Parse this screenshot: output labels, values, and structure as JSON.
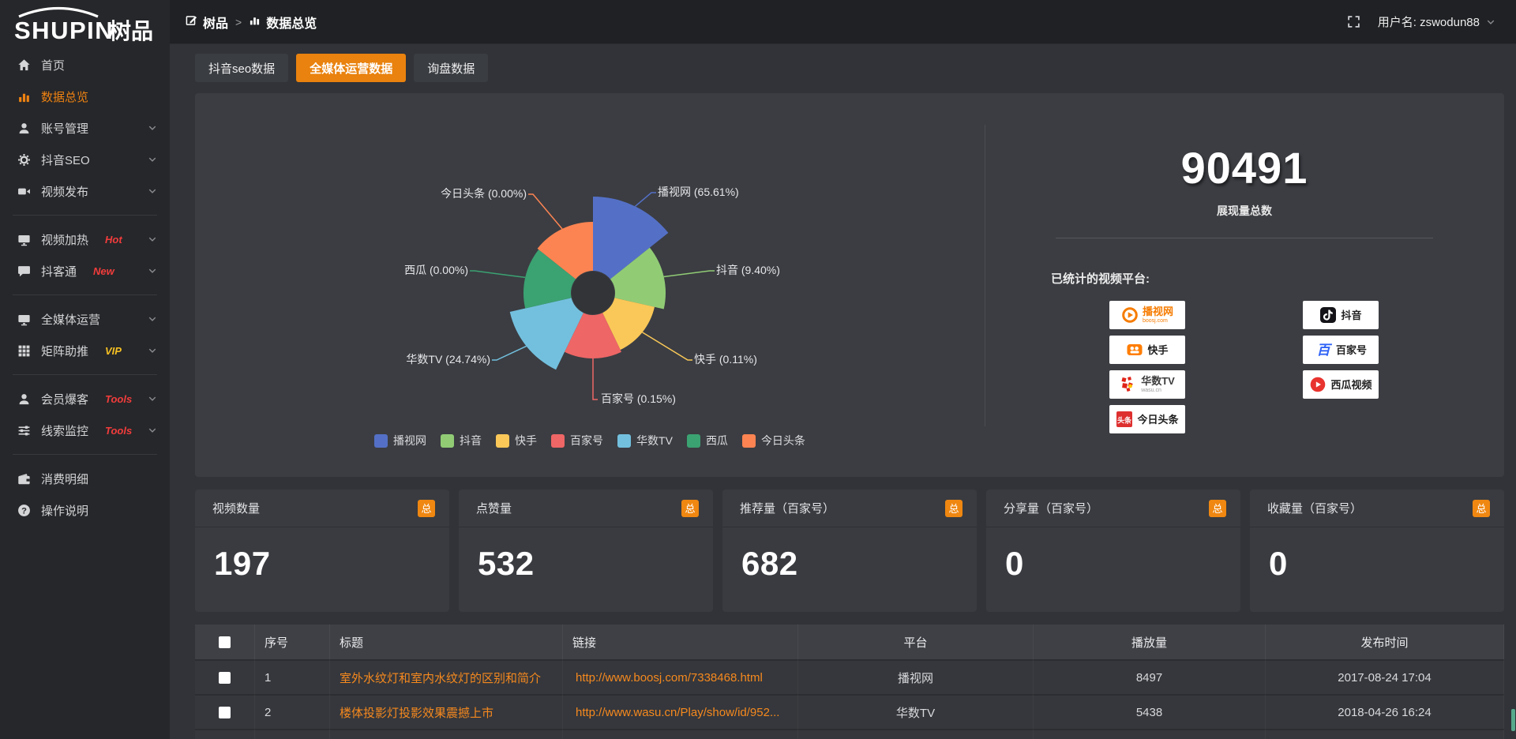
{
  "logo": {
    "text_en": "SHUPIN",
    "text_cn": "树品"
  },
  "topbar": {
    "breadcrumb_home": "树品",
    "breadcrumb_sep": ">",
    "breadcrumb_current": "数据总览",
    "user_label": "用户名: zswodun88"
  },
  "sidebar": {
    "items": [
      {
        "key": "home",
        "label": "首页",
        "icon": "home"
      },
      {
        "key": "data-overview",
        "label": "数据总览",
        "icon": "chart",
        "active": true
      },
      {
        "key": "account-management",
        "label": "账号管理",
        "icon": "user",
        "chevron": true
      },
      {
        "key": "douyin-seo",
        "label": "抖音SEO",
        "icon": "gear",
        "chevron": true
      },
      {
        "key": "video-publish",
        "label": "视频发布",
        "icon": "video",
        "chevron": true
      },
      {
        "divider": true
      },
      {
        "key": "video-heat",
        "label": "视频加热",
        "icon": "monitor",
        "badge": "Hot",
        "badge_color": "#f23c3c",
        "chevron": true
      },
      {
        "key": "douketong",
        "label": "抖客通",
        "icon": "chat",
        "badge": "New",
        "badge_color": "#f23c3c",
        "chevron": true
      },
      {
        "divider": true
      },
      {
        "key": "all-media-operation",
        "label": "全媒体运营",
        "icon": "monitor",
        "chevron": true
      },
      {
        "key": "matrix-boost",
        "label": "矩阵助推",
        "icon": "grid",
        "badge": "VIP",
        "badge_color": "#f5c023",
        "chevron": true
      },
      {
        "divider": true
      },
      {
        "key": "member-baoke",
        "label": "会员爆客",
        "icon": "user",
        "badge": "Tools",
        "badge_color": "#f23c3c",
        "chevron": true
      },
      {
        "key": "lead-monitor",
        "label": "线索监控",
        "icon": "sliders",
        "badge": "Tools",
        "badge_color": "#f23c3c",
        "chevron": true
      },
      {
        "divider": true
      },
      {
        "key": "consume-detail",
        "label": "消费明细",
        "icon": "wallet"
      },
      {
        "key": "operation-guide",
        "label": "操作说明",
        "icon": "help"
      }
    ]
  },
  "tabs": [
    {
      "key": "douyin-seo-data",
      "label": "抖音seo数据"
    },
    {
      "key": "all-media-operation-data",
      "label": "全媒体运营数据",
      "active": true
    },
    {
      "key": "inquiry-data",
      "label": "询盘数据"
    }
  ],
  "chart_data": {
    "type": "pie",
    "variant": "nightingale-rose",
    "legend_position": "bottom",
    "inner_radius": 28,
    "label_format": "{name} ({percent}%)",
    "slices": [
      {
        "name": "播视网",
        "percent": "65.61",
        "color": "#5470c6",
        "display_radius": 122
      },
      {
        "name": "抖音",
        "percent": "9.40",
        "color": "#91cc75",
        "display_radius": 92
      },
      {
        "name": "快手",
        "percent": "0.11",
        "color": "#fac858",
        "display_radius": 80
      },
      {
        "name": "百家号",
        "percent": "0.15",
        "color": "#ee6666",
        "display_radius": 83
      },
      {
        "name": "华数TV",
        "percent": "24.74",
        "color": "#73c0de",
        "display_radius": 108
      },
      {
        "name": "西瓜",
        "percent": "0.00",
        "color": "#3ba272",
        "display_radius": 88
      },
      {
        "name": "今日头条",
        "percent": "0.00",
        "color": "#fc8452",
        "display_radius": 90
      }
    ]
  },
  "summary": {
    "total": "90491",
    "total_label": "展现量总数",
    "platforms_title": "已统计的视频平台:",
    "platforms": [
      {
        "key": "boosj",
        "name": "播视网",
        "name_color": "#f67c01",
        "sub": "boosj.com",
        "sub_color": "#f67c01",
        "icon": "boosj",
        "col": 1
      },
      {
        "key": "kuaishou",
        "name": "快手",
        "name_color": "#1f1f1f",
        "sub": "",
        "sub_color": "",
        "icon": "kuaishou",
        "col": 1
      },
      {
        "key": "wasu",
        "name": "华数TV",
        "name_color": "#3c3c3c",
        "sub": "wasu.cn",
        "sub_color": "#999999",
        "icon": "wasu",
        "col": 1
      },
      {
        "key": "toutiao",
        "name": "今日头条",
        "name_color": "#1f1f1f",
        "sub": "",
        "sub_color": "",
        "icon": "toutiao",
        "col": 1
      },
      {
        "key": "douyin",
        "name": "抖音",
        "name_color": "#1f1f1f",
        "sub": "",
        "sub_color": "",
        "icon": "douyin",
        "col": 2
      },
      {
        "key": "baijiahao",
        "name": "百家号",
        "name_color": "#1f1f1f",
        "sub": "",
        "sub_color": "",
        "icon": "baijiahao",
        "col": 2
      },
      {
        "key": "xigua",
        "name": "西瓜视频",
        "name_color": "#1f1f1f",
        "sub": "",
        "sub_color": "",
        "icon": "xigua",
        "col": 2
      }
    ]
  },
  "stat_cards": [
    {
      "key": "video-count",
      "title": "视频数量",
      "badge": "总",
      "value": "197"
    },
    {
      "key": "like-count",
      "title": "点赞量",
      "badge": "总",
      "value": "532"
    },
    {
      "key": "recommend-count",
      "title": "推荐量（百家号）",
      "badge": "总",
      "value": "682"
    },
    {
      "key": "share-count",
      "title": "分享量（百家号）",
      "badge": "总",
      "value": "0"
    },
    {
      "key": "favorite-count",
      "title": "收藏量（百家号）",
      "badge": "总",
      "value": "0"
    }
  ],
  "table": {
    "headers": [
      "序号",
      "标题",
      "链接",
      "平台",
      "播放量",
      "发布时间"
    ],
    "rows": [
      {
        "index": "1",
        "title": "室外水纹灯和室内水纹灯的区别和简介",
        "link": "http://www.boosj.com/7338468.html",
        "platform": "播视网",
        "views": "8497",
        "time": "2017-08-24 17:04"
      },
      {
        "index": "2",
        "title": "楼体投影灯投影效果震撼上市",
        "link": "http://www.wasu.cn/Play/show/id/952...",
        "platform": "华数TV",
        "views": "5438",
        "time": "2018-04-26 16:24"
      }
    ]
  }
}
